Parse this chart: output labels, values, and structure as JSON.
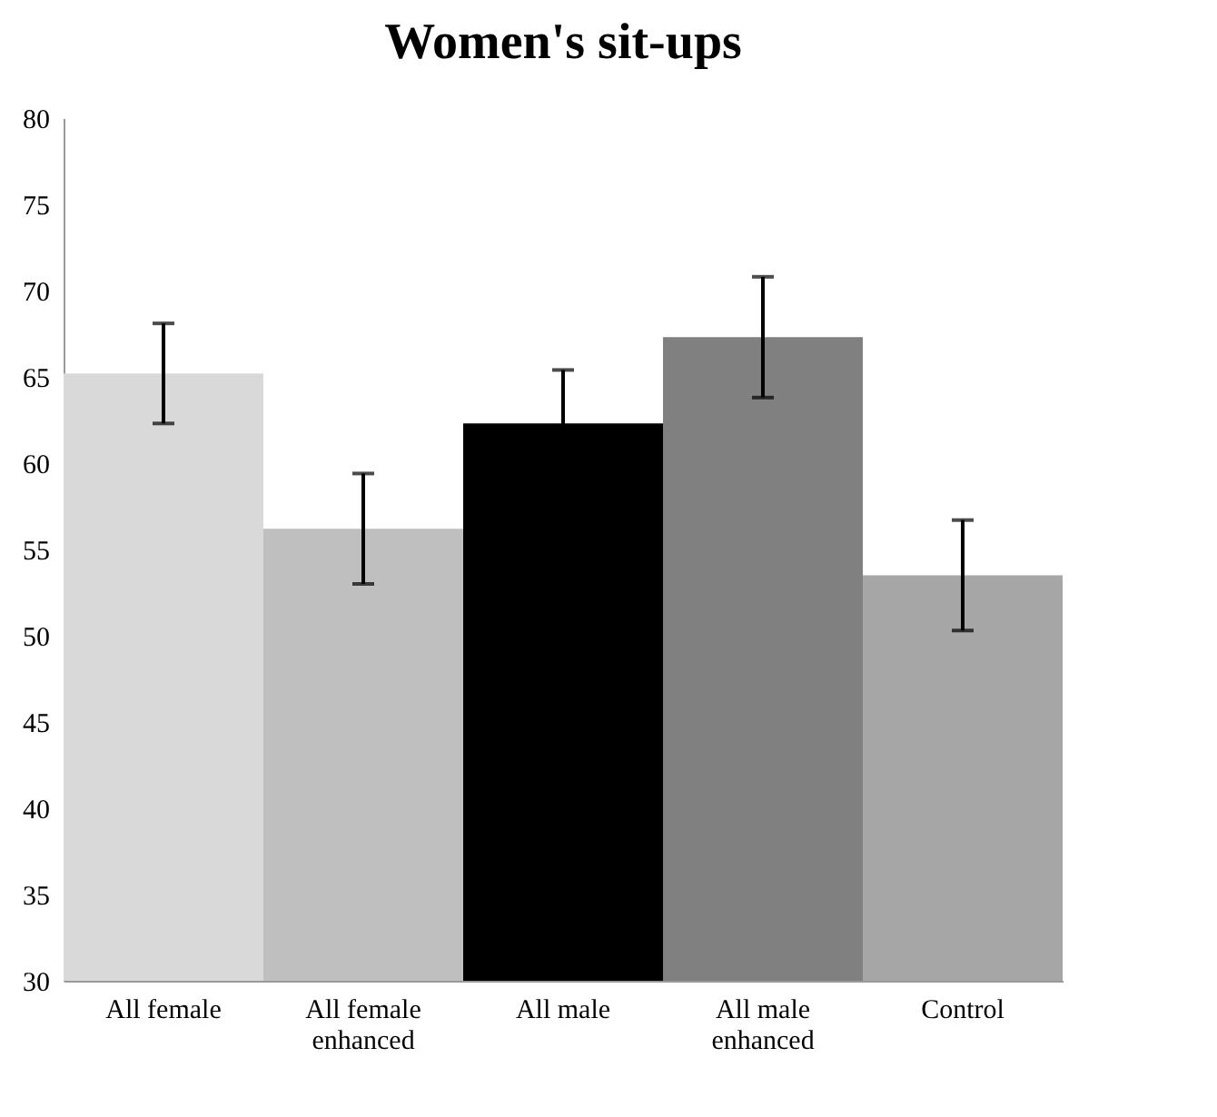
{
  "chart_data": {
    "type": "bar",
    "title": "Women's sit-ups",
    "categories": [
      "All female",
      "All female enhanced",
      "All male",
      "All male enhanced",
      "Control"
    ],
    "values": [
      65.2,
      56.2,
      62.3,
      67.3,
      53.5
    ],
    "colors": [
      "#d9d9d9",
      "#bfbfbf",
      "#000000",
      "#808080",
      "#a6a6a6"
    ],
    "errors": [
      2.9,
      3.2,
      3.1,
      3.5,
      3.2
    ],
    "ylim": [
      30,
      80
    ],
    "yticks": [
      30,
      35,
      40,
      45,
      50,
      55,
      60,
      65,
      70,
      75,
      80
    ],
    "grid": false
  }
}
